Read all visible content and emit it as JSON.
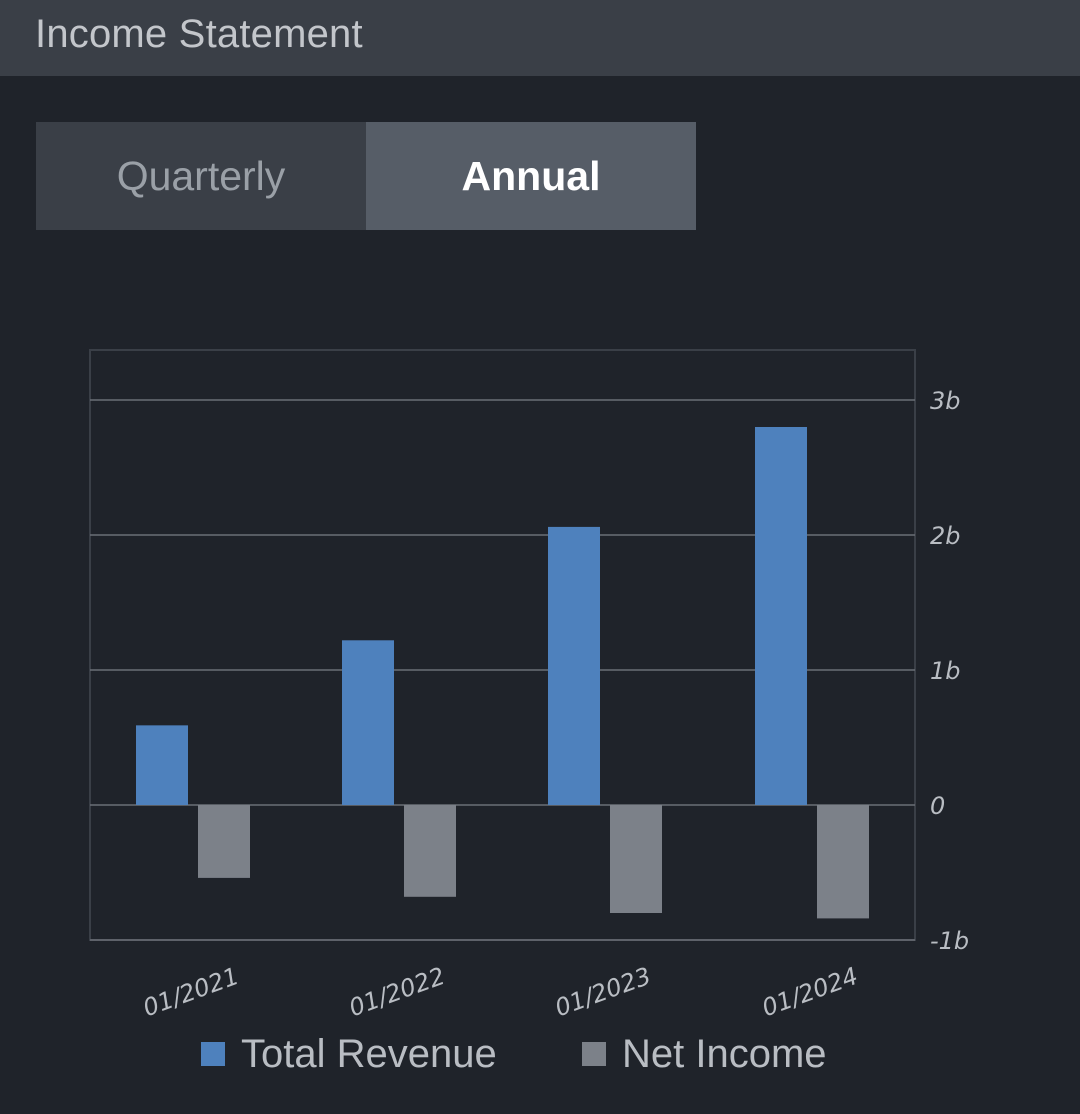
{
  "header": {
    "title": "Income Statement"
  },
  "toggle": {
    "quarterly_label": "Quarterly",
    "annual_label": "Annual",
    "selected": "Annual"
  },
  "colors": {
    "total_revenue": "#4e81bd",
    "net_income": "#7c8189",
    "gridline": "#6a6f76",
    "frame": "#3a3f47"
  },
  "chart_data": {
    "type": "bar",
    "categories": [
      "01/2021",
      "01/2022",
      "01/2023",
      "01/2024"
    ],
    "series": [
      {
        "name": "Total Revenue",
        "values": [
          0.59,
          1.22,
          2.06,
          2.8
        ]
      },
      {
        "name": "Net Income",
        "values": [
          -0.54,
          -0.68,
          -0.8,
          -0.84
        ]
      }
    ],
    "y_ticks": [
      {
        "value": 3,
        "label": "3b"
      },
      {
        "value": 2,
        "label": "2b"
      },
      {
        "value": 1,
        "label": "1b"
      },
      {
        "value": 0,
        "label": "0"
      },
      {
        "value": -1,
        "label": "-1b"
      }
    ],
    "ylim": [
      -1,
      3.37
    ],
    "title": "",
    "xlabel": "",
    "ylabel": "",
    "legend_position": "bottom",
    "grid": true
  },
  "legend": {
    "total_revenue_label": "Total Revenue",
    "net_income_label": "Net Income"
  }
}
